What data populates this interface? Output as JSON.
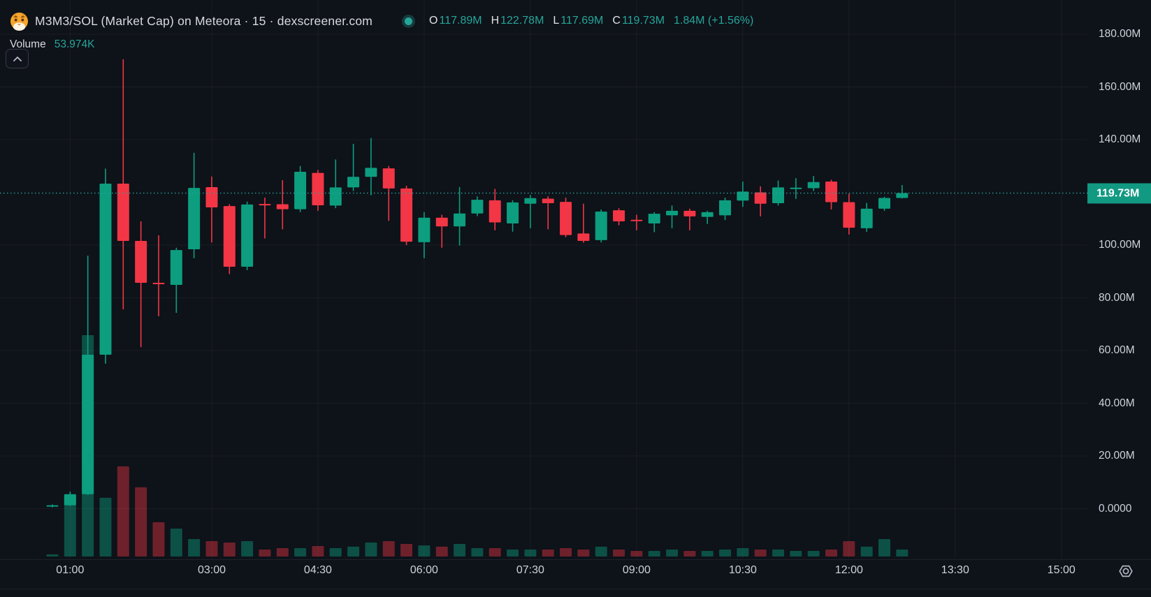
{
  "header": {
    "title": "M3M3/SOL (Market Cap) on Meteora · 15 · dexscreener.com",
    "ohlc": {
      "o_label": "O",
      "o_value": "117.89M",
      "h_label": "H",
      "h_value": "122.78M",
      "l_label": "L",
      "l_value": "117.69M",
      "c_label": "C",
      "c_value": "119.73M",
      "change": "1.84M (+1.56%)"
    },
    "volume_label": "Volume",
    "volume_value": "53.974K"
  },
  "colors": {
    "background": "#0e1219",
    "up": "#0c9e7f",
    "down": "#f23645",
    "volume_up": "rgba(12,158,127,0.45)",
    "volume_down": "rgba(242,54,69,0.42)",
    "accent_text": "#26a69a",
    "axis_text": "#ced3dc",
    "grid": "rgba(255,255,255,0.05)",
    "price_line": "#26a69a",
    "price_label_bg": "#119982"
  },
  "price_axis": {
    "current": {
      "label": "119.73M",
      "value": 119.73
    },
    "ticks": [
      {
        "label": "180.00M",
        "value": 180
      },
      {
        "label": "160.00M",
        "value": 160
      },
      {
        "label": "140.00M",
        "value": 140
      },
      {
        "label": "100.00M",
        "value": 100
      },
      {
        "label": "80.00M",
        "value": 80
      },
      {
        "label": "60.00M",
        "value": 60
      },
      {
        "label": "40.00M",
        "value": 40
      },
      {
        "label": "20.00M",
        "value": 20
      },
      {
        "label": "0.0000",
        "value": 0
      }
    ]
  },
  "time_axis": {
    "labels": [
      {
        "label": "01:00",
        "index": 1
      },
      {
        "label": "03:00",
        "index": 9
      },
      {
        "label": "04:30",
        "index": 15
      },
      {
        "label": "06:00",
        "index": 21
      },
      {
        "label": "07:30",
        "index": 27
      },
      {
        "label": "09:00",
        "index": 33
      },
      {
        "label": "10:30",
        "index": 39
      },
      {
        "label": "12:00",
        "index": 45
      },
      {
        "label": "13:30",
        "index": 51
      },
      {
        "label": "15:00",
        "index": 57
      }
    ]
  },
  "chart_data": {
    "type": "candlestick",
    "pair": "M3M3/SOL",
    "metric": "Market Cap",
    "venue": "Meteora",
    "interval_minutes": 15,
    "source": "dexscreener.com",
    "units": "millions (price), thousands (volume)",
    "ylim": [
      0,
      185
    ],
    "last_close": 119.73,
    "last_change": "+1.56%",
    "candles": [
      {
        "t": "00:45",
        "o": 0.8,
        "h": 1.6,
        "l": 0.5,
        "c": 1.3,
        "v": 16
      },
      {
        "t": "01:00",
        "o": 1.3,
        "h": 6.5,
        "l": 1.0,
        "c": 5.5,
        "v": 470
      },
      {
        "t": "01:15",
        "o": 5.5,
        "h": 96.0,
        "l": 5.2,
        "c": 58.4,
        "v": 1712
      },
      {
        "t": "01:30",
        "o": 58.4,
        "h": 129.0,
        "l": 55.0,
        "c": 123.3,
        "v": 454
      },
      {
        "t": "01:45",
        "o": 123.3,
        "h": 170.5,
        "l": 75.6,
        "c": 101.6,
        "v": 697
      },
      {
        "t": "02:00",
        "o": 101.6,
        "h": 109.0,
        "l": 61.3,
        "c": 85.7,
        "v": 535
      },
      {
        "t": "02:15",
        "o": 85.7,
        "h": 103.7,
        "l": 73.0,
        "c": 85.5,
        "v": 265
      },
      {
        "t": "02:30",
        "o": 84.9,
        "h": 99.0,
        "l": 74.3,
        "c": 98.1,
        "v": 216
      },
      {
        "t": "02:45",
        "o": 98.4,
        "h": 135.0,
        "l": 95.0,
        "c": 121.7,
        "v": 135
      },
      {
        "t": "03:00",
        "o": 122.0,
        "h": 126.0,
        "l": 101.0,
        "c": 114.3,
        "v": 119
      },
      {
        "t": "03:15",
        "o": 114.8,
        "h": 115.5,
        "l": 89.0,
        "c": 91.8,
        "v": 108
      },
      {
        "t": "03:30",
        "o": 91.8,
        "h": 116.5,
        "l": 90.5,
        "c": 115.4,
        "v": 119
      },
      {
        "t": "03:45",
        "o": 115.6,
        "h": 118.0,
        "l": 102.5,
        "c": 115.2,
        "v": 54
      },
      {
        "t": "04:00",
        "o": 115.5,
        "h": 124.6,
        "l": 106.0,
        "c": 113.6,
        "v": 65
      },
      {
        "t": "04:15",
        "o": 113.6,
        "h": 130.0,
        "l": 112.5,
        "c": 127.8,
        "v": 65
      },
      {
        "t": "04:30",
        "o": 127.4,
        "h": 128.5,
        "l": 113.0,
        "c": 115.1,
        "v": 81
      },
      {
        "t": "04:45",
        "o": 115.0,
        "h": 132.5,
        "l": 114.0,
        "c": 121.9,
        "v": 65
      },
      {
        "t": "05:00",
        "o": 121.9,
        "h": 138.4,
        "l": 120.5,
        "c": 125.9,
        "v": 76
      },
      {
        "t": "05:15",
        "o": 125.9,
        "h": 140.6,
        "l": 118.9,
        "c": 129.3,
        "v": 108
      },
      {
        "t": "05:30",
        "o": 129.1,
        "h": 130.0,
        "l": 109.2,
        "c": 121.5,
        "v": 119
      },
      {
        "t": "05:45",
        "o": 121.5,
        "h": 122.5,
        "l": 100.0,
        "c": 101.3,
        "v": 97
      },
      {
        "t": "06:00",
        "o": 101.1,
        "h": 112.5,
        "l": 95.0,
        "c": 110.4,
        "v": 86
      },
      {
        "t": "06:15",
        "o": 110.4,
        "h": 111.5,
        "l": 99.0,
        "c": 107.1,
        "v": 76
      },
      {
        "t": "06:30",
        "o": 107.1,
        "h": 122.0,
        "l": 99.8,
        "c": 112.0,
        "v": 97
      },
      {
        "t": "06:45",
        "o": 112.0,
        "h": 118.5,
        "l": 111.0,
        "c": 117.2,
        "v": 65
      },
      {
        "t": "07:00",
        "o": 117.0,
        "h": 121.3,
        "l": 105.6,
        "c": 108.6,
        "v": 65
      },
      {
        "t": "07:15",
        "o": 108.2,
        "h": 117.0,
        "l": 105.1,
        "c": 116.2,
        "v": 54
      },
      {
        "t": "07:30",
        "o": 115.7,
        "h": 119.0,
        "l": 106.4,
        "c": 117.8,
        "v": 54
      },
      {
        "t": "07:45",
        "o": 117.6,
        "h": 118.5,
        "l": 106.0,
        "c": 115.9,
        "v": 54
      },
      {
        "t": "08:00",
        "o": 116.4,
        "h": 118.0,
        "l": 103.0,
        "c": 103.8,
        "v": 65
      },
      {
        "t": "08:15",
        "o": 104.4,
        "h": 115.7,
        "l": 100.9,
        "c": 101.6,
        "v": 54
      },
      {
        "t": "08:30",
        "o": 101.9,
        "h": 113.5,
        "l": 101.0,
        "c": 112.7,
        "v": 76
      },
      {
        "t": "08:45",
        "o": 113.2,
        "h": 114.0,
        "l": 107.5,
        "c": 109.0,
        "v": 54
      },
      {
        "t": "09:00",
        "o": 109.6,
        "h": 111.5,
        "l": 105.6,
        "c": 109.4,
        "v": 43
      },
      {
        "t": "09:15",
        "o": 108.2,
        "h": 112.5,
        "l": 104.9,
        "c": 111.9,
        "v": 43
      },
      {
        "t": "09:30",
        "o": 111.3,
        "h": 115.0,
        "l": 106.4,
        "c": 113.0,
        "v": 54
      },
      {
        "t": "09:45",
        "o": 113.0,
        "h": 113.8,
        "l": 105.6,
        "c": 110.9,
        "v": 43
      },
      {
        "t": "10:00",
        "o": 110.7,
        "h": 113.0,
        "l": 108.0,
        "c": 112.5,
        "v": 43
      },
      {
        "t": "10:15",
        "o": 111.3,
        "h": 118.0,
        "l": 109.5,
        "c": 117.0,
        "v": 54
      },
      {
        "t": "10:30",
        "o": 116.9,
        "h": 124.1,
        "l": 114.5,
        "c": 120.3,
        "v": 65
      },
      {
        "t": "10:45",
        "o": 120.0,
        "h": 122.3,
        "l": 110.9,
        "c": 115.7,
        "v": 54
      },
      {
        "t": "11:00",
        "o": 115.9,
        "h": 124.5,
        "l": 115.0,
        "c": 121.9,
        "v": 54
      },
      {
        "t": "11:15",
        "o": 121.4,
        "h": 125.4,
        "l": 117.5,
        "c": 121.8,
        "v": 43
      },
      {
        "t": "11:30",
        "o": 121.6,
        "h": 126.2,
        "l": 120.5,
        "c": 123.9,
        "v": 43
      },
      {
        "t": "11:45",
        "o": 124.1,
        "h": 124.8,
        "l": 113.5,
        "c": 116.3,
        "v": 54
      },
      {
        "t": "12:00",
        "o": 116.3,
        "h": 119.5,
        "l": 104.0,
        "c": 106.6,
        "v": 119
      },
      {
        "t": "12:15",
        "o": 106.4,
        "h": 116.0,
        "l": 105.0,
        "c": 113.8,
        "v": 76
      },
      {
        "t": "12:30",
        "o": 113.8,
        "h": 118.3,
        "l": 113.0,
        "c": 117.89,
        "v": 135
      },
      {
        "t": "12:45",
        "o": 117.89,
        "h": 122.78,
        "l": 117.69,
        "c": 119.73,
        "v": 53.974
      }
    ]
  }
}
